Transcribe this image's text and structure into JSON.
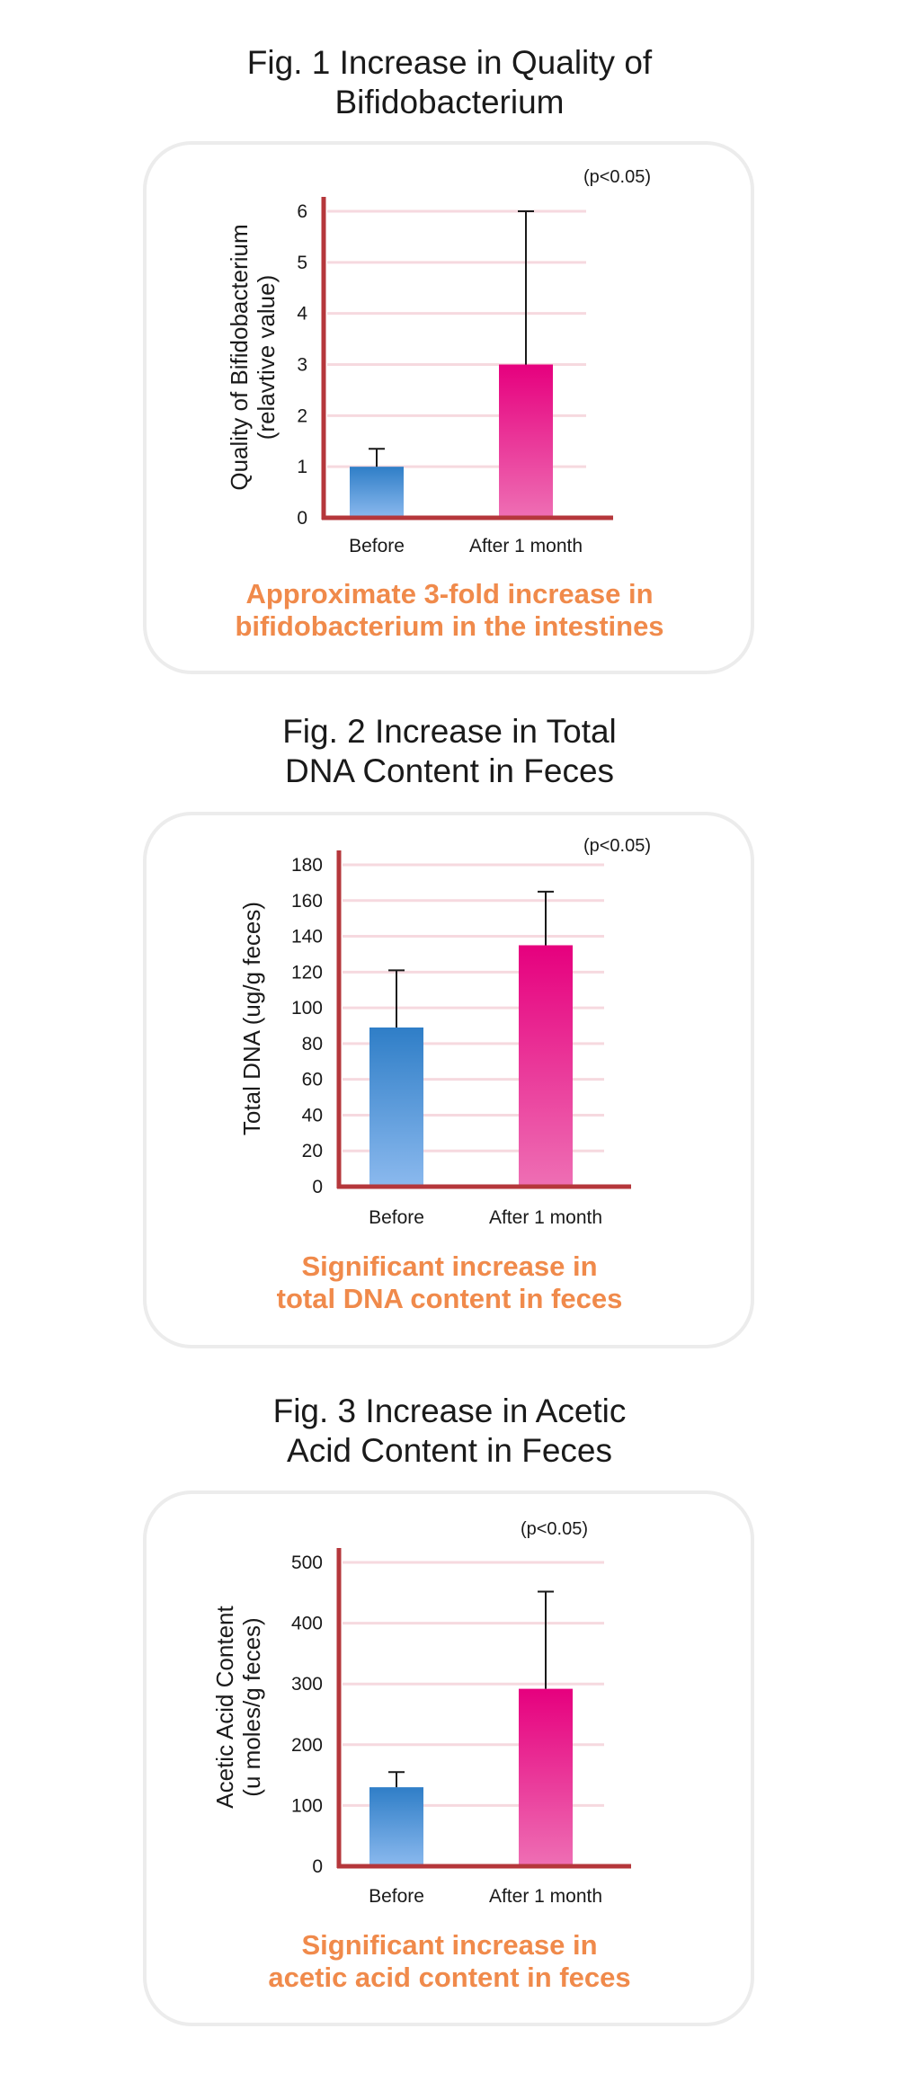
{
  "colors": {
    "axis": "#b5373b",
    "before_top": "#2f7ec7",
    "before_bottom": "#8bb9ee",
    "after_top": "#e6007e",
    "after_bottom": "#ee6fb4",
    "caption": "#f08a4b",
    "gridline": "#f6d9df"
  },
  "figures": [
    {
      "title_line1": "Fig. 1 Increase in Quality of",
      "title_line2": "Bifidobacterium",
      "caption_line1": "Approximate 3-fold increase in",
      "caption_line2": "bifidobacterium in the intestines"
    },
    {
      "title_line1": "Fig. 2 Increase in Total",
      "title_line2": "DNA Content in Feces",
      "caption_line1": "Significant increase in",
      "caption_line2": "total DNA content in feces"
    },
    {
      "title_line1": "Fig. 3 Increase in Acetic",
      "title_line2": "Acid Content in Feces",
      "caption_line1": "Significant increase in",
      "caption_line2": "acetic acid content in feces"
    }
  ],
  "chart_data": [
    {
      "type": "bar",
      "categories": [
        "Before",
        "After 1 month"
      ],
      "values": [
        1.0,
        3.0
      ],
      "error_upper": [
        1.35,
        6.0
      ],
      "ylabel_line1": "Quality of Bifidobacterium",
      "ylabel_line2": "(relavtive value)",
      "ylim": [
        0,
        6
      ],
      "yticks": [
        0,
        1,
        2,
        3,
        4,
        5,
        6
      ],
      "annotation": "(p<0.05)"
    },
    {
      "type": "bar",
      "categories": [
        "Before",
        "After 1 month"
      ],
      "values": [
        89,
        135
      ],
      "error_upper": [
        121,
        165
      ],
      "ylabel_line1": "Total DNA (ug/g feces)",
      "ylabel_line2": "",
      "ylim": [
        0,
        180
      ],
      "yticks": [
        0,
        20,
        40,
        60,
        80,
        100,
        120,
        140,
        160,
        180
      ],
      "annotation": "(p<0.05)"
    },
    {
      "type": "bar",
      "categories": [
        "Before",
        "After 1 month"
      ],
      "values": [
        130,
        292
      ],
      "error_upper": [
        155,
        452
      ],
      "ylabel_line1": "Acetic Acid Content",
      "ylabel_line2": "(u moles/g feces)",
      "ylim": [
        0,
        500
      ],
      "yticks": [
        0,
        100,
        200,
        300,
        400,
        500
      ],
      "annotation": "(p<0.05)"
    }
  ]
}
